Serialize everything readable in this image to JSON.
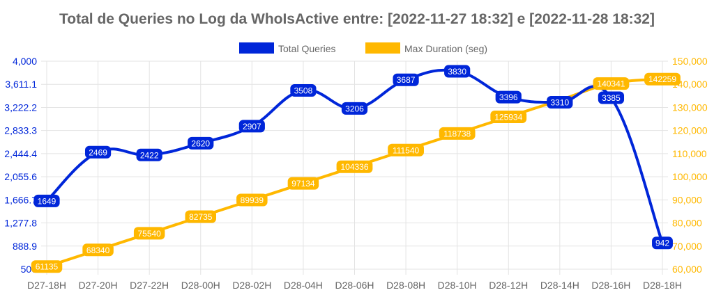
{
  "chart_data": {
    "type": "line",
    "title": "Total de Queries no Log da WhoIsActive entre: [2022-11-27 18:32] e [2022-11-28 18:32]",
    "legend_position": "top",
    "grid": true,
    "categories": [
      "D27-18H",
      "D27-20H",
      "D27-22H",
      "D28-00H",
      "D28-02H",
      "D28-04H",
      "D28-06H",
      "D28-08H",
      "D28-10H",
      "D28-12H",
      "D28-14H",
      "D28-16H",
      "D28-18H"
    ],
    "left_axis": {
      "range": [
        500,
        4000
      ],
      "ticks": [
        "500",
        "888.9",
        "1,277.8",
        "1,666.7",
        "2,055.6",
        "2,444.4",
        "2,833.3",
        "3,222.2",
        "3,611.1",
        "4,000"
      ],
      "color": "#0026d9"
    },
    "right_axis": {
      "range": [
        60000,
        150000
      ],
      "ticks": [
        "60,000",
        "70,000",
        "80,000",
        "90,000",
        "100,000",
        "110,000",
        "120,000",
        "130,000",
        "140,000",
        "150,000"
      ],
      "color": "#ffb800"
    },
    "series": [
      {
        "name": "Total Queries",
        "axis": "left",
        "color": "#0026d9",
        "values": [
          1649,
          2469,
          2422,
          2620,
          2907,
          3508,
          3206,
          3687,
          3830,
          3396,
          3310,
          3385,
          942
        ],
        "labels": [
          "1649",
          "2469",
          "2422",
          "2620",
          "2907",
          "3508",
          "3206",
          "3687",
          "3830",
          "3396",
          "3310",
          "3385",
          "942"
        ]
      },
      {
        "name": "Max Duration (seg)",
        "axis": "right",
        "color": "#ffb800",
        "values": [
          61135,
          68340,
          75540,
          82735,
          89939,
          97134,
          104336,
          111540,
          118738,
          125934,
          133137,
          140341,
          142259
        ],
        "labels": [
          "61135",
          "68340",
          "75540",
          "82735",
          "89939",
          "97134",
          "104336",
          "111540",
          "118738",
          "125934",
          "",
          "140341",
          "142259"
        ]
      }
    ]
  }
}
